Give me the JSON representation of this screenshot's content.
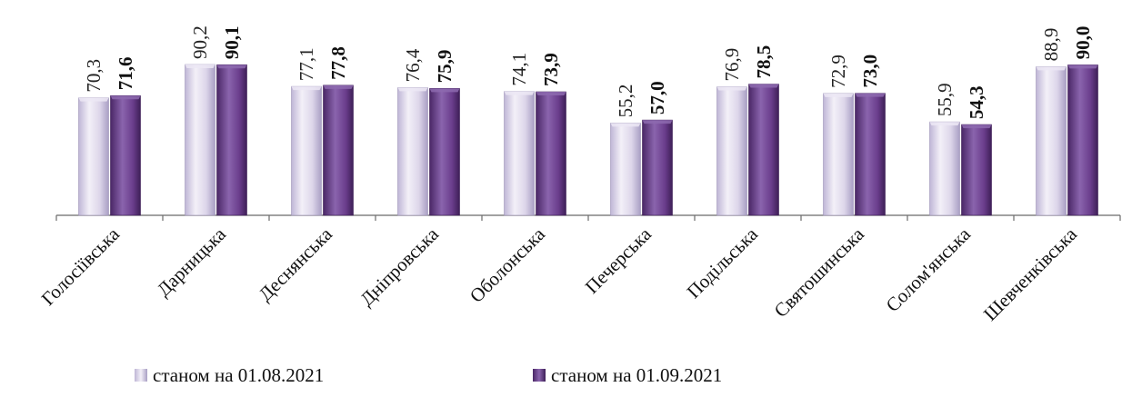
{
  "chart_data": {
    "type": "bar",
    "categories": [
      "Голосіївська",
      "Дарницька",
      "Деснянська",
      "Дніпровська",
      "Оболонська",
      "Печерська",
      "Подільська",
      "Святошинська",
      "Солом'янська",
      "Шевченківська"
    ],
    "series": [
      {
        "name": "станом на 01.08.2021",
        "values": [
          70.3,
          90.2,
          77.1,
          76.4,
          74.1,
          55.2,
          76.9,
          72.9,
          55.9,
          88.9
        ],
        "labels": [
          "70,3",
          "90,2",
          "77,1",
          "76,4",
          "74,1",
          "55,2",
          "76,9",
          "72,9",
          "55,9",
          "88,9"
        ],
        "color": "#d9d2e9"
      },
      {
        "name": "станом на 01.09.2021",
        "values": [
          71.6,
          90.1,
          77.8,
          75.9,
          73.9,
          57.0,
          78.5,
          73.0,
          54.3,
          90.0
        ],
        "labels": [
          "71,6",
          "90,1",
          "77,8",
          "75,9",
          "73,9",
          "57,0",
          "78,5",
          "73,0",
          "54,3",
          "90,0"
        ],
        "color": "#6a3d8c"
      }
    ],
    "title": "",
    "xlabel": "",
    "ylabel": "",
    "ylim": [
      0,
      100
    ],
    "grid": false,
    "legend": "bottom"
  }
}
